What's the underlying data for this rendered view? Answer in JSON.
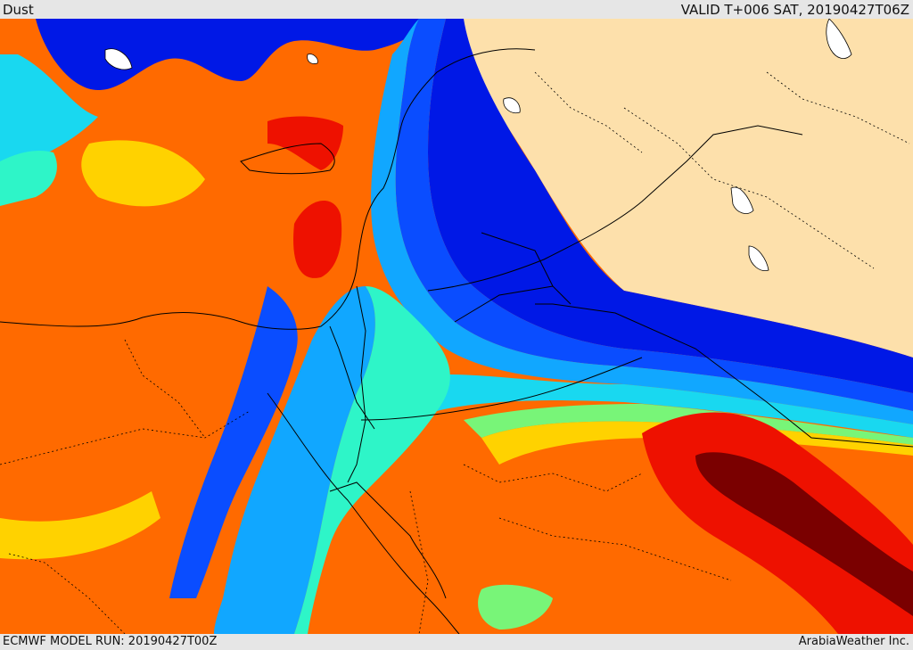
{
  "header": {
    "left_title": "Dust",
    "right_title": "VALID T+006 SAT, 20190427T06Z"
  },
  "footer": {
    "left_text": "ECMWF MODEL RUN: 20190427T00Z",
    "right_text": "ArabiaWeather Inc."
  },
  "map": {
    "field": "Dust",
    "colors": {
      "land_masked": "#fde0ab",
      "dark_blue": "#0018e6",
      "blue": "#0a4dff",
      "light_blue": "#11a7ff",
      "cyan": "#19d8f0",
      "aqua": "#2ef5c8",
      "green": "#78f578",
      "yellow_green": "#d2f542",
      "yellow": "#ffd200",
      "orange_light": "#ffaa00",
      "orange": "#ff6a00",
      "red": "#ee1100",
      "dark_red": "#7a0000",
      "border_line": "#000000",
      "lake_white": "#ffffff"
    }
  }
}
